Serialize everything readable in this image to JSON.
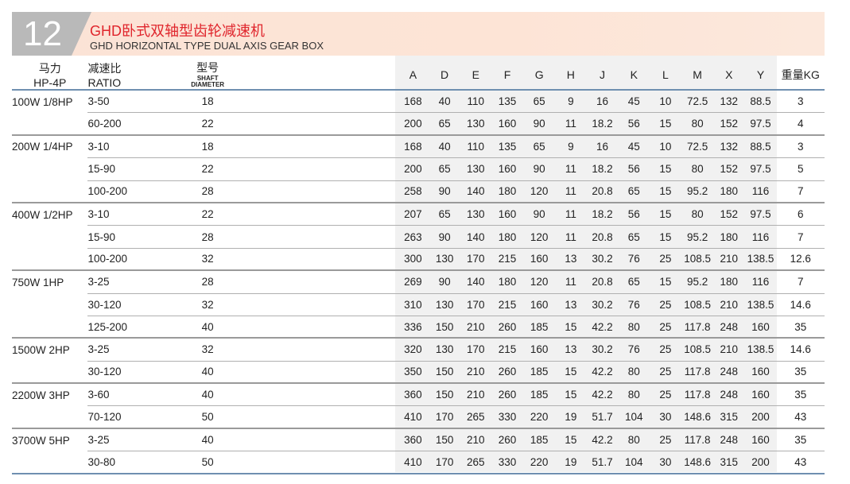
{
  "header": {
    "number": "12",
    "title_cn": "GHD卧式双轴型齿轮减速机",
    "title_en": "GHD HORIZONTAL TYPE DUAL  AXIS GEAR BOX"
  },
  "columns": {
    "hp_cn": "马力",
    "hp_en": "HP-4P",
    "ratio_cn": "减速比",
    "ratio_en": "RATIO",
    "model_cn": "型号",
    "model_en1": "SHAFT",
    "model_en2": "DIAMETER",
    "dims": [
      "A",
      "D",
      "E",
      "F",
      "G",
      "H",
      "J",
      "K",
      "L",
      "M",
      "X",
      "Y"
    ],
    "weight": "重量KG"
  },
  "groups": [
    {
      "hp": "100W 1/8HP",
      "rows": [
        [
          "3-50",
          "18",
          "168",
          "40",
          "110",
          "135",
          "65",
          "9",
          "16",
          "45",
          "10",
          "72.5",
          "132",
          "88.5",
          "3"
        ],
        [
          "60-200",
          "22",
          "200",
          "65",
          "130",
          "160",
          "90",
          "11",
          "18.2",
          "56",
          "15",
          "80",
          "152",
          "97.5",
          "4"
        ]
      ]
    },
    {
      "hp": "200W 1/4HP",
      "rows": [
        [
          "3-10",
          "18",
          "168",
          "40",
          "110",
          "135",
          "65",
          "9",
          "16",
          "45",
          "10",
          "72.5",
          "132",
          "88.5",
          "3"
        ],
        [
          "15-90",
          "22",
          "200",
          "65",
          "130",
          "160",
          "90",
          "11",
          "18.2",
          "56",
          "15",
          "80",
          "152",
          "97.5",
          "5"
        ],
        [
          "100-200",
          "28",
          "258",
          "90",
          "140",
          "180",
          "120",
          "11",
          "20.8",
          "65",
          "15",
          "95.2",
          "180",
          "116",
          "7"
        ]
      ]
    },
    {
      "hp": "400W 1/2HP",
      "rows": [
        [
          "3-10",
          "22",
          "207",
          "65",
          "130",
          "160",
          "90",
          "11",
          "18.2",
          "56",
          "15",
          "80",
          "152",
          "97.5",
          "6"
        ],
        [
          "15-90",
          "28",
          "263",
          "90",
          "140",
          "180",
          "120",
          "11",
          "20.8",
          "65",
          "15",
          "95.2",
          "180",
          "116",
          "7"
        ],
        [
          "100-200",
          "32",
          "300",
          "130",
          "170",
          "215",
          "160",
          "13",
          "30.2",
          "76",
          "25",
          "108.5",
          "210",
          "138.5",
          "12.6"
        ]
      ]
    },
    {
      "hp": "750W 1HP",
      "rows": [
        [
          "3-25",
          "28",
          "269",
          "90",
          "140",
          "180",
          "120",
          "11",
          "20.8",
          "65",
          "15",
          "95.2",
          "180",
          "116",
          "7"
        ],
        [
          "30-120",
          "32",
          "310",
          "130",
          "170",
          "215",
          "160",
          "13",
          "30.2",
          "76",
          "25",
          "108.5",
          "210",
          "138.5",
          "14.6"
        ],
        [
          "125-200",
          "40",
          "336",
          "150",
          "210",
          "260",
          "185",
          "15",
          "42.2",
          "80",
          "25",
          "117.8",
          "248",
          "160",
          "35"
        ]
      ]
    },
    {
      "hp": "1500W 2HP",
      "rows": [
        [
          "3-25",
          "32",
          "320",
          "130",
          "170",
          "215",
          "160",
          "13",
          "30.2",
          "76",
          "25",
          "108.5",
          "210",
          "138.5",
          "14.6"
        ],
        [
          "30-120",
          "40",
          "350",
          "150",
          "210",
          "260",
          "185",
          "15",
          "42.2",
          "80",
          "25",
          "117.8",
          "248",
          "160",
          "35"
        ]
      ]
    },
    {
      "hp": "2200W 3HP",
      "rows": [
        [
          "3-60",
          "40",
          "360",
          "150",
          "210",
          "260",
          "185",
          "15",
          "42.2",
          "80",
          "25",
          "117.8",
          "248",
          "160",
          "35"
        ],
        [
          "70-120",
          "50",
          "410",
          "170",
          "265",
          "330",
          "220",
          "19",
          "51.7",
          "104",
          "30",
          "148.6",
          "315",
          "200",
          "43"
        ]
      ]
    },
    {
      "hp": "3700W 5HP",
      "rows": [
        [
          "3-25",
          "40",
          "360",
          "150",
          "210",
          "260",
          "185",
          "15",
          "42.2",
          "80",
          "25",
          "117.8",
          "248",
          "160",
          "35"
        ],
        [
          "30-80",
          "50",
          "410",
          "170",
          "265",
          "330",
          "220",
          "19",
          "51.7",
          "104",
          "30",
          "148.6",
          "315",
          "200",
          "43"
        ]
      ]
    }
  ]
}
